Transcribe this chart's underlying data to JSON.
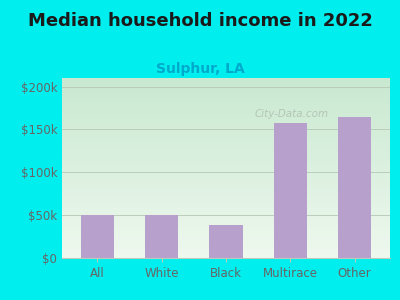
{
  "title": "Median household income in 2022",
  "subtitle": "Sulphur, LA",
  "categories": [
    "All",
    "White",
    "Black",
    "Multirace",
    "Other"
  ],
  "values": [
    50000,
    50000,
    38000,
    158000,
    165000
  ],
  "bar_color": "#b8a0cc",
  "title_fontsize": 13,
  "subtitle_fontsize": 10,
  "subtitle_color": "#00aacc",
  "tick_color": "#666666",
  "background_outer": "#00eeee",
  "background_plot_top": "#c8e8d0",
  "background_plot_bottom": "#eef8ee",
  "ylim": [
    0,
    210000
  ],
  "yticks": [
    0,
    50000,
    100000,
    150000,
    200000
  ],
  "ytick_labels": [
    "$0",
    "$50k",
    "$100k",
    "$150k",
    "$200k"
  ],
  "grid_color": "#bbccbb",
  "watermark": "City-Data.com"
}
